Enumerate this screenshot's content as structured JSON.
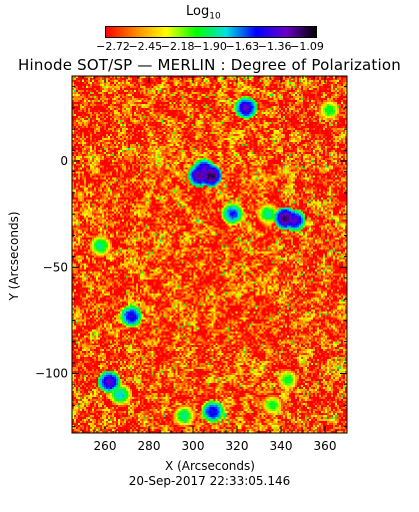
{
  "title": "Hinode SOT/SP — MERLIN : Degree of Polarization",
  "date_stamp": "20-Sep-2017 22:33:05.146",
  "colorbar": {
    "label_main": "Log",
    "label_sub": "10",
    "tick_labels": [
      "−2.72",
      "−2.45",
      "−2.18",
      "−1.90",
      "−1.63",
      "−1.36",
      "−1.09"
    ],
    "range": [
      -2.72,
      -1.09
    ],
    "colors": [
      "#ff0000",
      "#ff8800",
      "#ffff00",
      "#00ff00",
      "#00e0e0",
      "#0000ff",
      "#6a00c8",
      "#000000"
    ]
  },
  "chart_data": {
    "type": "heatmap",
    "title": "Hinode SOT/SP — MERLIN : Degree of Polarization",
    "xlabel": "X (Arcseconds)",
    "ylabel": "Y (Arcseconds)",
    "xlim": [
      245,
      370
    ],
    "ylim": [
      -128,
      40
    ],
    "x_ticks": [
      260,
      280,
      300,
      320,
      340,
      360
    ],
    "y_ticks": [
      0,
      -50,
      -100
    ],
    "colormap": [
      "#ff0000",
      "#ff8800",
      "#ffff00",
      "#00ff00",
      "#00e0e0",
      "#0000ff",
      "#6a00c8",
      "#000000"
    ],
    "value_range": [
      -2.72,
      -1.09
    ],
    "background_level": -2.6,
    "features": [
      {
        "x": 308,
        "y": -7,
        "level": -1.1
      },
      {
        "x": 303,
        "y": -7,
        "level": -1.2
      },
      {
        "x": 305,
        "y": -4,
        "level": -1.3
      },
      {
        "x": 342,
        "y": -27,
        "level": -1.15
      },
      {
        "x": 346,
        "y": -28,
        "level": -1.3
      },
      {
        "x": 334,
        "y": -25,
        "level": -1.8
      },
      {
        "x": 318,
        "y": -25,
        "level": -1.5
      },
      {
        "x": 324,
        "y": 25,
        "level": -1.3
      },
      {
        "x": 272,
        "y": -73,
        "level": -1.4
      },
      {
        "x": 262,
        "y": -104,
        "level": -1.3
      },
      {
        "x": 267,
        "y": -110,
        "level": -1.7
      },
      {
        "x": 309,
        "y": -118,
        "level": -1.4
      },
      {
        "x": 296,
        "y": -120,
        "level": -1.8
      },
      {
        "x": 336,
        "y": -115,
        "level": -1.9
      },
      {
        "x": 258,
        "y": -40,
        "level": -1.8
      },
      {
        "x": 362,
        "y": 24,
        "level": -1.9
      },
      {
        "x": 343,
        "y": -103,
        "level": -1.9
      }
    ]
  }
}
